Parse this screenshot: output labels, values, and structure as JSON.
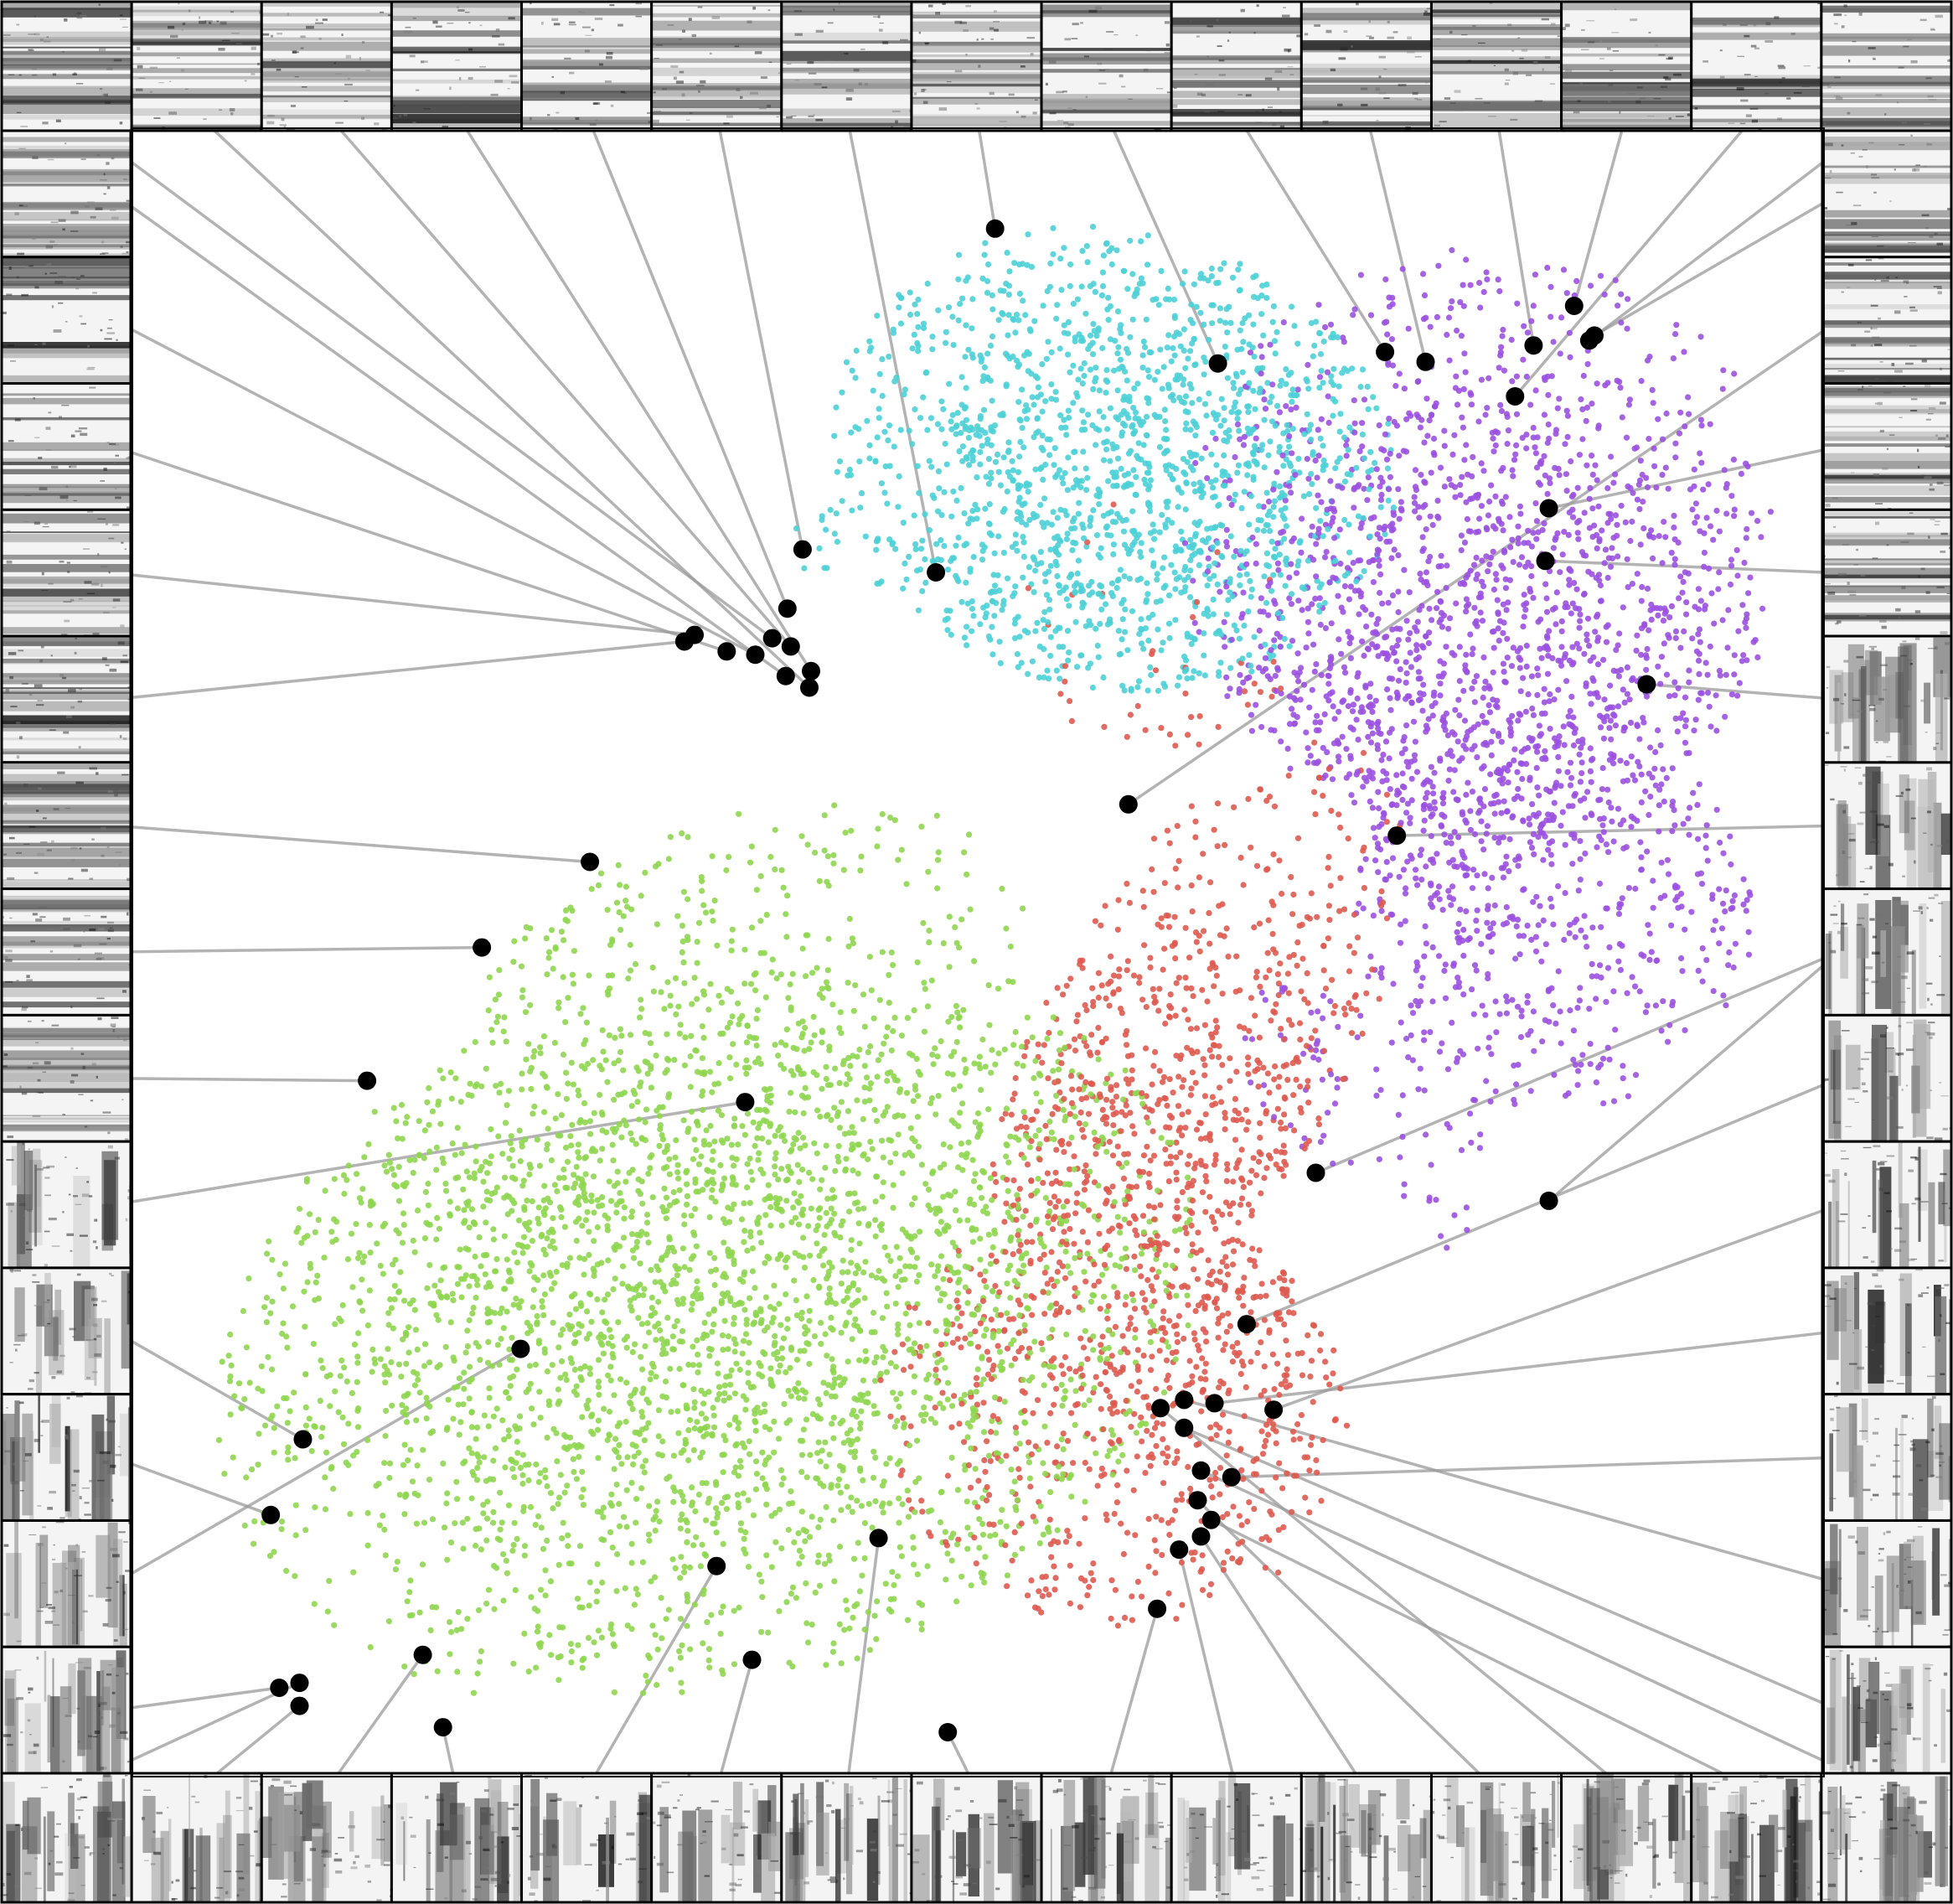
{
  "chart_data": {
    "type": "scatter",
    "title": "",
    "xlabel": "",
    "ylabel": "",
    "grid": false,
    "legend": "none",
    "axes_visible": false,
    "colors": {
      "cyan": "#4dd0d6",
      "purple": "#9b51e0",
      "red": "#de5a50",
      "green": "#8fd650",
      "highlight": "#000000",
      "connector": "#9a9a9a",
      "tile_border": "#000000"
    },
    "clusters": [
      {
        "color_key": "cyan",
        "share": 0.18
      },
      {
        "color_key": "purple",
        "share": 0.26
      },
      {
        "color_key": "red",
        "share": 0.17
      },
      {
        "color_key": "green",
        "share": 0.39
      }
    ],
    "highlighted_points": [
      [
        0.51,
        0.06
      ],
      [
        0.396,
        0.255
      ],
      [
        0.475,
        0.269
      ],
      [
        0.589,
        0.41
      ],
      [
        0.642,
        0.142
      ],
      [
        0.741,
        0.135
      ],
      [
        0.829,
        0.131
      ],
      [
        0.853,
        0.107
      ],
      [
        0.865,
        0.125
      ],
      [
        0.862,
        0.128
      ],
      [
        0.818,
        0.162
      ],
      [
        0.765,
        0.141
      ],
      [
        0.838,
        0.23
      ],
      [
        0.836,
        0.262
      ],
      [
        0.896,
        0.337
      ],
      [
        0.748,
        0.429
      ],
      [
        0.7,
        0.634
      ],
      [
        0.838,
        0.651
      ],
      [
        0.659,
        0.726
      ],
      [
        0.64,
        0.774
      ],
      [
        0.608,
        0.777
      ],
      [
        0.622,
        0.772
      ],
      [
        0.675,
        0.778
      ],
      [
        0.622,
        0.789
      ],
      [
        0.632,
        0.815
      ],
      [
        0.65,
        0.819
      ],
      [
        0.63,
        0.833
      ],
      [
        0.638,
        0.845
      ],
      [
        0.632,
        0.855
      ],
      [
        0.619,
        0.863
      ],
      [
        0.606,
        0.899
      ],
      [
        0.441,
        0.856
      ],
      [
        0.482,
        0.974
      ],
      [
        0.366,
        0.93
      ],
      [
        0.345,
        0.873
      ],
      [
        0.183,
        0.971
      ],
      [
        0.171,
        0.927
      ],
      [
        0.098,
        0.944
      ],
      [
        0.098,
        0.958
      ],
      [
        0.086,
        0.947
      ],
      [
        0.1,
        0.796
      ],
      [
        0.081,
        0.842
      ],
      [
        0.229,
        0.741
      ],
      [
        0.138,
        0.578
      ],
      [
        0.362,
        0.591
      ],
      [
        0.206,
        0.497
      ],
      [
        0.27,
        0.445
      ],
      [
        0.401,
        0.329
      ],
      [
        0.332,
        0.307
      ],
      [
        0.326,
        0.311
      ],
      [
        0.351,
        0.317
      ],
      [
        0.387,
        0.291
      ],
      [
        0.378,
        0.309
      ],
      [
        0.389,
        0.314
      ],
      [
        0.368,
        0.319
      ],
      [
        0.386,
        0.332
      ],
      [
        0.4,
        0.339
      ]
    ],
    "tiles": {
      "top_count": 15,
      "bottom_count": 15,
      "left_count": 13,
      "right_count": 13
    }
  }
}
